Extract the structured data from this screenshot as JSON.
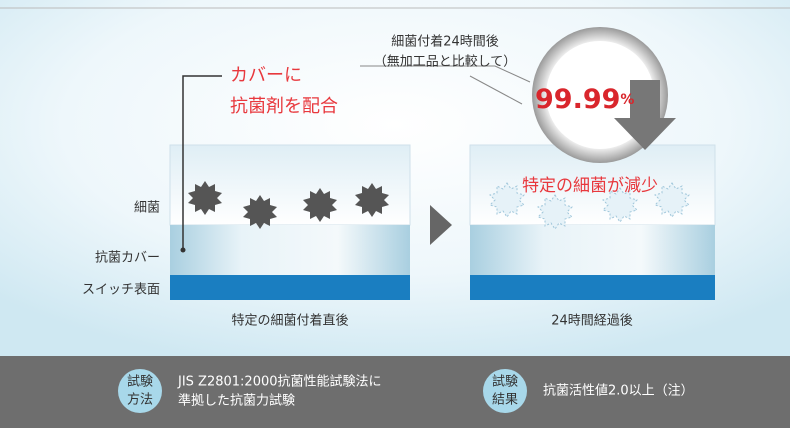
{
  "callout": {
    "line1": "細菌付着24時間後",
    "line2": "（無加工品と比較して）",
    "rate": "99.99",
    "unit": "%"
  },
  "cover_note": {
    "line1": "カバーに",
    "line2": "抗菌剤を配合"
  },
  "layers": {
    "bacteria": "細菌",
    "cover": "抗菌カバー",
    "surface": "スイッチ表面"
  },
  "before": {
    "caption": "特定の細菌付着直後"
  },
  "after": {
    "note": "特定の細菌が減少",
    "caption": "24時間経過後"
  },
  "footer": {
    "method_badge": [
      "試験",
      "方法"
    ],
    "method": [
      "JIS Z2801:2000抗菌性能試験法に",
      "準拠した抗菌力試験"
    ],
    "result_badge": [
      "試験",
      "結果"
    ],
    "result": "抗菌活性値2.0以上（注）"
  }
}
